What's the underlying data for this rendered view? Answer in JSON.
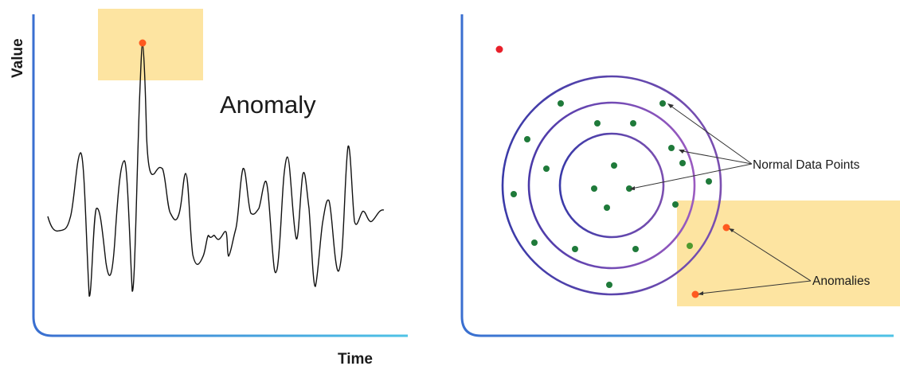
{
  "left_panel": {
    "y_axis_label": "Value",
    "x_axis_label": "Time",
    "annotation": "Anomaly"
  },
  "right_panel": {
    "normal_label": "Normal Data Points",
    "anomalies_label": "Anomalies"
  },
  "colors": {
    "axis_start": "#3a6fd0",
    "axis_end": "#4ec3e6",
    "highlight": "#fde4a1",
    "anomaly_dot": "#ff5a1f",
    "red_dot": "#e8202a",
    "normal_dot": "#1f7a3a",
    "circle_outer": "#6a3aa0",
    "circle_inner": "#3a3aa8",
    "signal_line": "#111111"
  }
}
